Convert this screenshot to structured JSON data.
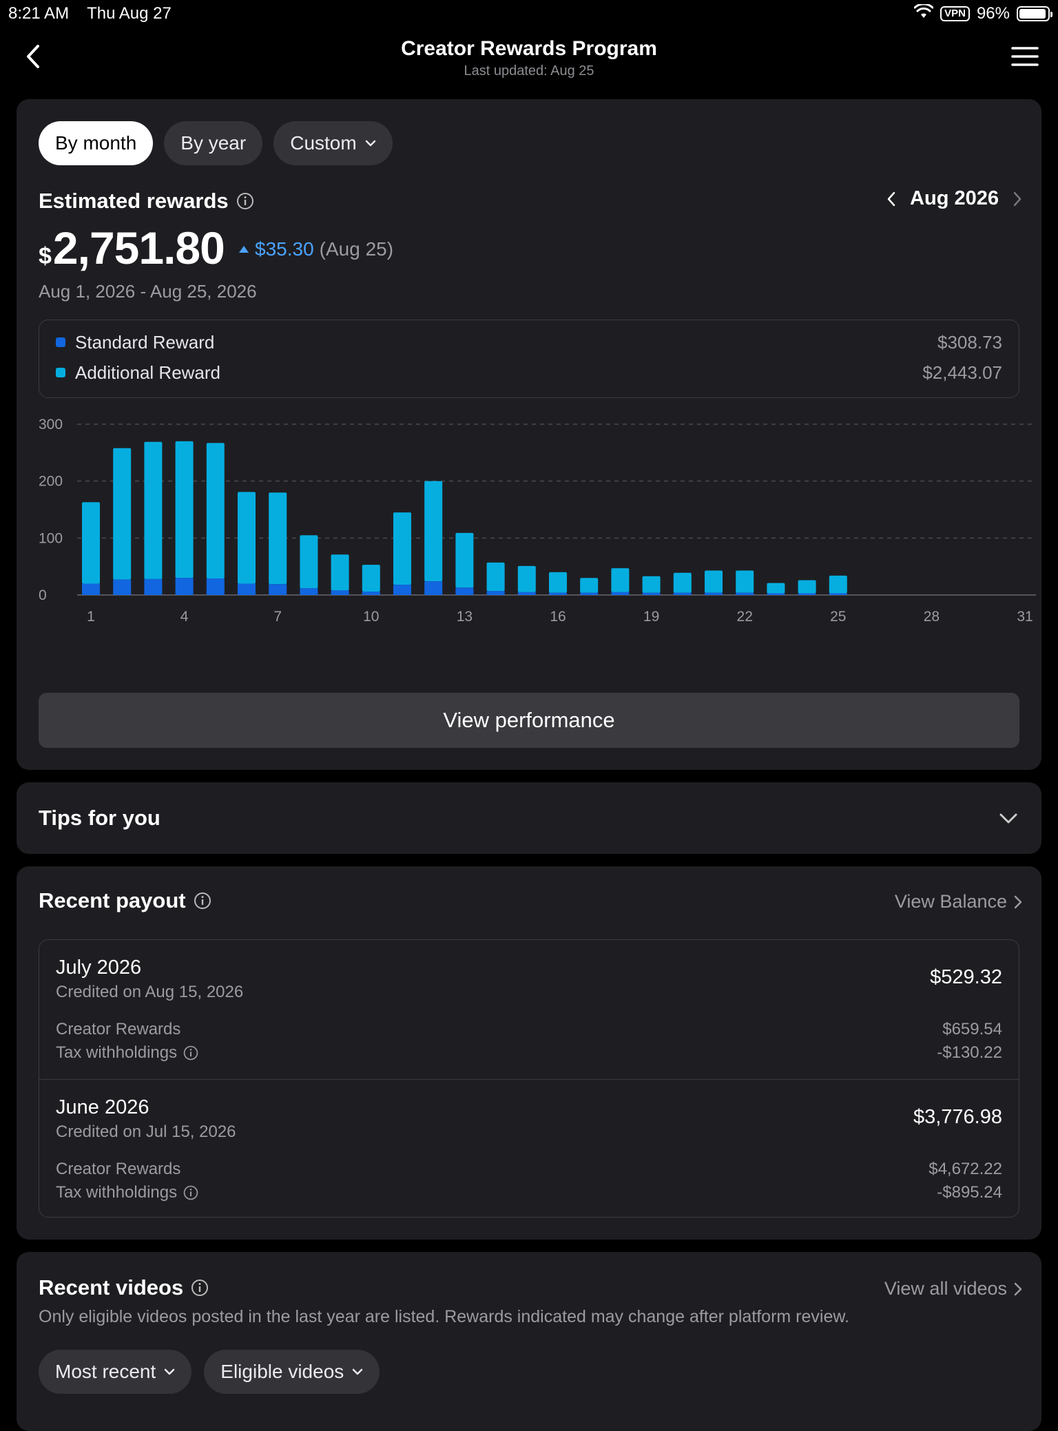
{
  "status": {
    "time": "8:21 AM",
    "date": "Thu Aug 27",
    "vpn": "VPN",
    "battery": "96%"
  },
  "nav": {
    "title": "Creator Rewards Program",
    "subtitle": "Last updated: Aug 25"
  },
  "tabs": [
    {
      "label": "By month",
      "active": true
    },
    {
      "label": "By year",
      "active": false
    },
    {
      "label": "Custom",
      "active": false
    }
  ],
  "rewards": {
    "title": "Estimated rewards",
    "period": "Aug 2026",
    "currency": "$",
    "amount": "2,751.80",
    "delta": "$35.30",
    "delta_date": "(Aug 25)",
    "date_range": "Aug 1, 2026 - Aug 25, 2026",
    "legend": [
      {
        "label": "Standard Reward",
        "value": "$308.73",
        "color": "#1266e0"
      },
      {
        "label": "Additional Reward",
        "value": "$2,443.07",
        "color": "#06aee0"
      }
    ],
    "view_performance": "View performance"
  },
  "chart_data": {
    "type": "bar",
    "stacked": true,
    "x": [
      1,
      2,
      3,
      4,
      5,
      6,
      7,
      8,
      9,
      10,
      11,
      12,
      13,
      14,
      15,
      16,
      17,
      18,
      19,
      20,
      21,
      22,
      23,
      24,
      25,
      26,
      27,
      28,
      29,
      30,
      31
    ],
    "x_ticks": [
      1,
      4,
      7,
      10,
      13,
      16,
      19,
      22,
      25,
      28,
      31
    ],
    "y_ticks": [
      0,
      100,
      200,
      300
    ],
    "ylim": [
      0,
      300
    ],
    "grid": true,
    "series": [
      {
        "name": "Standard Reward",
        "color": "#1266e0",
        "values": [
          20,
          27,
          28,
          30,
          29,
          20,
          19,
          12,
          8,
          6,
          18,
          24,
          13,
          7,
          5,
          4,
          4,
          5,
          4,
          4,
          4,
          4,
          3,
          3,
          3,
          null,
          null,
          null,
          null,
          null,
          null
        ]
      },
      {
        "name": "Additional Reward",
        "color": "#06aee0",
        "values": [
          143,
          231,
          241,
          240,
          238,
          161,
          161,
          93,
          63,
          47,
          127,
          176,
          96,
          50,
          46,
          36,
          26,
          42,
          29,
          35,
          39,
          39,
          18,
          23,
          31,
          null,
          null,
          null,
          null,
          null,
          null
        ]
      }
    ]
  },
  "tips": {
    "title": "Tips for you"
  },
  "payout": {
    "title": "Recent payout",
    "link": "View Balance",
    "items": [
      {
        "month": "July 2026",
        "credited": "Credited on Aug 15, 2026",
        "total": "$529.32",
        "rewards_label": "Creator Rewards",
        "rewards_value": "$659.54",
        "tax_label": "Tax withholdings",
        "tax_value": "-$130.22"
      },
      {
        "month": "June 2026",
        "credited": "Credited on Jul 15, 2026",
        "total": "$3,776.98",
        "rewards_label": "Creator Rewards",
        "rewards_value": "$4,672.22",
        "tax_label": "Tax withholdings",
        "tax_value": "-$895.24"
      }
    ]
  },
  "videos": {
    "title": "Recent videos",
    "link": "View all videos",
    "description": "Only eligible videos posted in the last year are listed. Rewards indicated may change after platform review.",
    "filters": [
      "Most recent",
      "Eligible videos"
    ]
  }
}
